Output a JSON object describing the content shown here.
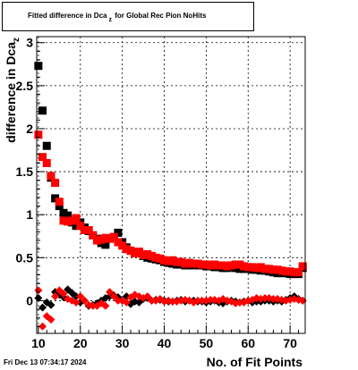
{
  "title": {
    "pre": "Fitted difference in Dca",
    "sub": "z",
    "post": "for Global Rec Pion NoHits"
  },
  "footer": {
    "datestamp": "Fri Dec 13 07:34:17 2024"
  },
  "colors": {
    "series1": "#000000",
    "series2": "#ff0000",
    "grid": "#000000",
    "frame": "#000000"
  },
  "chart_data": {
    "type": "scatter",
    "title": "Fitted difference in Dca_z for Global Rec Pion NoHits",
    "xlabel": "No. of Fit Points",
    "ylabel_main": "difference in Dca",
    "ylabel_sub": "z",
    "xlim": [
      9.6,
      73.6
    ],
    "ylim": [
      -0.38,
      3.07
    ],
    "xticks": [
      10,
      20,
      30,
      40,
      50,
      60,
      70
    ],
    "yticks": [
      0,
      0.5,
      1,
      1.5,
      2,
      2.5,
      3
    ],
    "grid": true,
    "x": [
      10,
      11,
      12,
      13,
      14,
      15,
      16,
      17,
      18,
      19,
      20,
      21,
      22,
      23,
      24,
      25,
      26,
      27,
      28,
      29,
      30,
      31,
      32,
      33,
      34,
      35,
      36,
      37,
      38,
      39,
      40,
      41,
      42,
      43,
      44,
      45,
      46,
      47,
      48,
      49,
      50,
      51,
      52,
      53,
      54,
      55,
      56,
      57,
      58,
      59,
      60,
      61,
      62,
      63,
      64,
      65,
      66,
      67,
      68,
      69,
      70,
      71,
      72,
      73
    ],
    "series": [
      {
        "name": "",
        "group": "mean",
        "values": [
          2.73,
          2.21,
          1.8,
          1.43,
          1.19,
          1.1,
          1.02,
          0.99,
          0.91,
          0.87,
          0.91,
          0.85,
          0.81,
          0.76,
          0.72,
          0.67,
          0.65,
          0.72,
          0.74,
          0.79,
          0.68,
          0.62,
          0.58,
          0.56,
          0.55,
          0.52,
          0.5,
          0.49,
          0.48,
          0.47,
          0.45,
          0.44,
          0.43,
          0.42,
          0.42,
          0.41,
          0.41,
          0.42,
          0.41,
          0.41,
          0.4,
          0.4,
          0.39,
          0.39,
          0.38,
          0.38,
          0.39,
          0.38,
          0.37,
          0.37,
          0.37,
          0.36,
          0.36,
          0.35,
          0.35,
          0.34,
          0.33,
          0.32,
          0.32,
          0.32,
          0.31,
          0.31,
          0.31,
          0.38
        ]
      },
      {
        "name": "",
        "group": "mean",
        "values": [
          1.93,
          1.67,
          1.6,
          1.45,
          1.37,
          1.15,
          0.93,
          0.92,
          0.93,
          0.96,
          0.87,
          0.82,
          0.82,
          0.76,
          0.7,
          0.71,
          0.73,
          0.72,
          0.74,
          0.68,
          0.64,
          0.6,
          0.58,
          0.55,
          0.57,
          0.53,
          0.54,
          0.52,
          0.5,
          0.49,
          0.47,
          0.46,
          0.47,
          0.45,
          0.45,
          0.43,
          0.44,
          0.43,
          0.43,
          0.42,
          0.42,
          0.41,
          0.42,
          0.41,
          0.41,
          0.4,
          0.41,
          0.42,
          0.42,
          0.4,
          0.39,
          0.39,
          0.38,
          0.39,
          0.37,
          0.37,
          0.36,
          0.36,
          0.35,
          0.34,
          0.34,
          0.33,
          0.33,
          0.4
        ]
      },
      {
        "name": "",
        "group": "offset",
        "values": [
          0.03,
          -0.08,
          -0.02,
          -0.05,
          0.1,
          0.07,
          0.04,
          0.13,
          0.09,
          0.05,
          -0.02,
          0.0,
          -0.06,
          -0.05,
          -0.03,
          0.0,
          0.03,
          0.05,
          0.06,
          0.04,
          0.0,
          0.05,
          -0.04,
          -0.01,
          -0.02,
          0.02,
          0.03,
          0.0,
          0.01,
          0.01,
          0.0,
          -0.01,
          -0.01,
          0.0,
          0.01,
          -0.01,
          0.0,
          0.0,
          -0.01,
          -0.01,
          -0.02,
          -0.01,
          0.0,
          -0.02,
          -0.03,
          -0.01,
          0.0,
          -0.01,
          -0.02,
          -0.01,
          0.0,
          -0.02,
          -0.01,
          -0.01,
          0.0,
          0.0,
          -0.01,
          0.0,
          -0.01,
          0.01,
          0.03,
          0.05,
          0.02,
          0.0
        ]
      },
      {
        "name": "",
        "group": "offset",
        "values": [
          0.12,
          -0.3,
          -0.18,
          -0.22,
          0.05,
          0.12,
          0.08,
          0.02,
          0.0,
          -0.02,
          0.05,
          0.0,
          -0.05,
          -0.06,
          -0.06,
          -0.03,
          -0.06,
          0.1,
          0.05,
          0.0,
          0.0,
          -0.02,
          0.04,
          0.07,
          0.05,
          0.03,
          0.05,
          0.0,
          0.0,
          0.02,
          -0.01,
          0.0,
          -0.01,
          -0.01,
          0.0,
          0.01,
          0.0,
          -0.02,
          0.0,
          0.0,
          0.0,
          0.01,
          0.01,
          0.0,
          0.02,
          0.0,
          -0.01,
          -0.03,
          -0.02,
          -0.02,
          0.0,
          0.01,
          0.03,
          0.02,
          0.03,
          0.03,
          0.02,
          0.02,
          0.01,
          0.0,
          0.01,
          0.02,
          0.01,
          0.0
        ]
      }
    ]
  }
}
